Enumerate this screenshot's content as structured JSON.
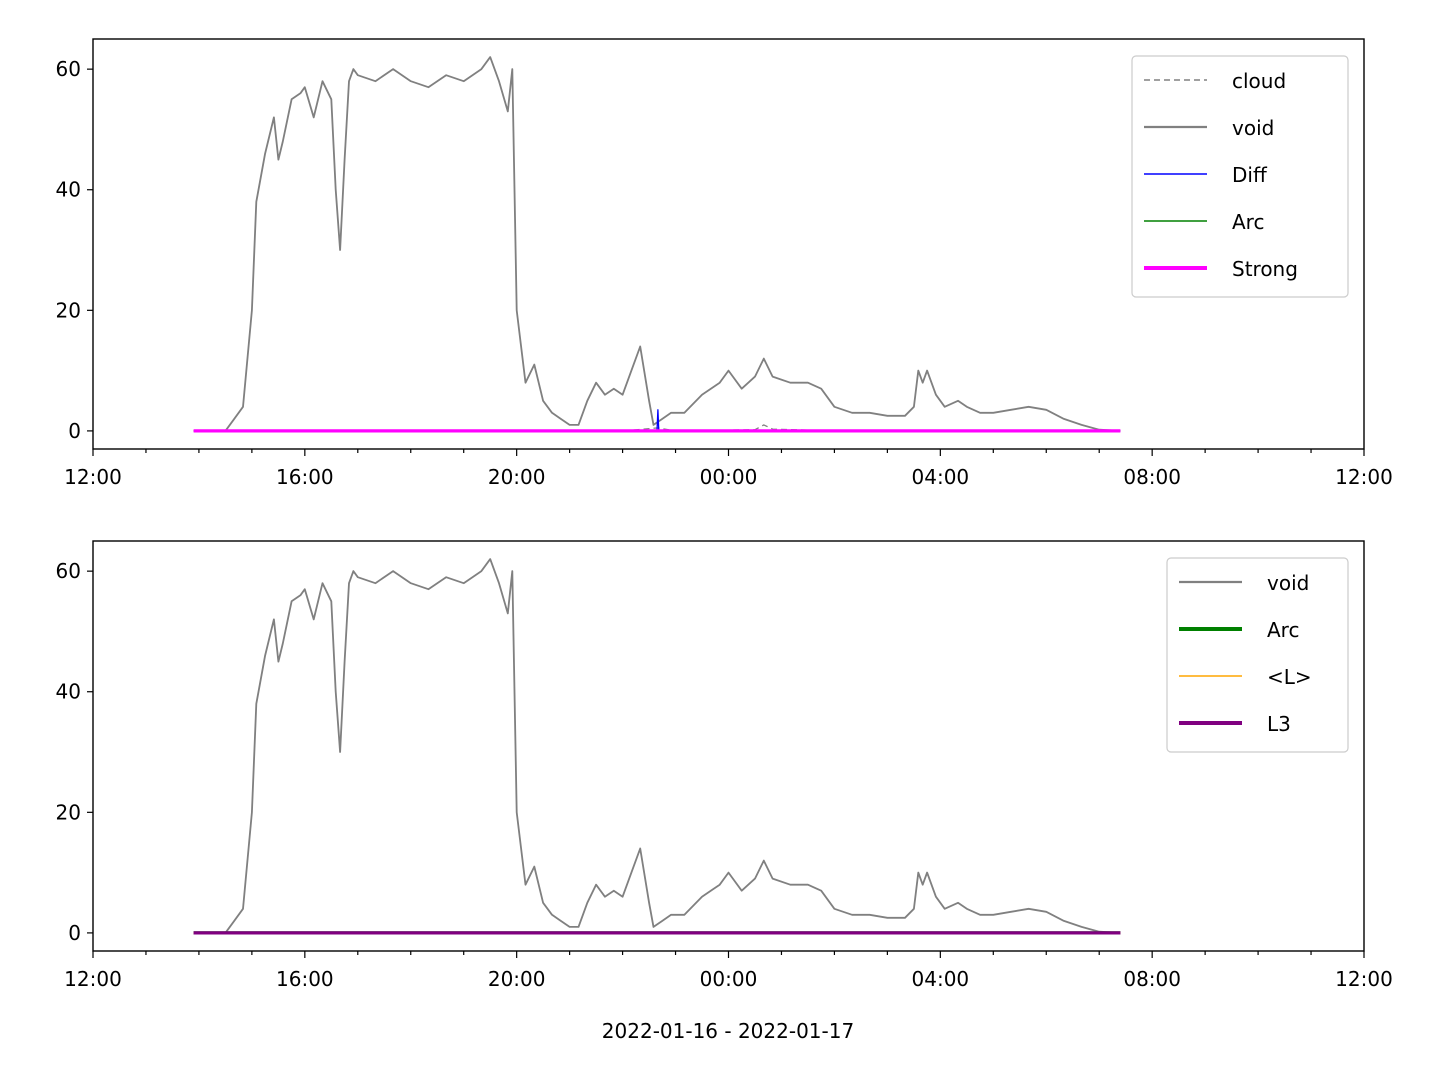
{
  "xlabel": "2022-01-16 - 2022-01-17",
  "x_ticks": [
    "12:00",
    "16:00",
    "20:00",
    "00:00",
    "04:00",
    "08:00",
    "12:00"
  ],
  "x_unit": "hours since 2022-01-16 00:00",
  "chart_data": [
    {
      "type": "line",
      "title": "",
      "xlabel": "",
      "ylabel": "",
      "xlim": [
        "2022-01-16 12:00",
        "2022-01-17 12:00"
      ],
      "ylim": [
        -3,
        65
      ],
      "yticks": [
        0,
        20,
        40,
        60
      ],
      "legend": "top-right",
      "series": [
        {
          "name": "cloud",
          "color": "#808080",
          "style": "dashed",
          "width": 1,
          "x": [
            "2022-01-16 13:54",
            "2022-01-16 22:00",
            "2022-01-16 22:40",
            "2022-01-16 23:00",
            "2022-01-17 00:30",
            "2022-01-17 00:40",
            "2022-01-17 00:50",
            "2022-01-17 02:00",
            "2022-01-17 07:24"
          ],
          "y": [
            0,
            0,
            0.5,
            0,
            0.2,
            1,
            0.3,
            0,
            0
          ]
        },
        {
          "name": "void",
          "color": "#808080",
          "style": "solid",
          "width": 1.4,
          "x": [
            "2022-01-16 13:54",
            "2022-01-16 14:30",
            "2022-01-16 14:40",
            "2022-01-16 14:50",
            "2022-01-16 15:00",
            "2022-01-16 15:05",
            "2022-01-16 15:15",
            "2022-01-16 15:25",
            "2022-01-16 15:30",
            "2022-01-16 15:35",
            "2022-01-16 15:45",
            "2022-01-16 15:55",
            "2022-01-16 16:00",
            "2022-01-16 16:10",
            "2022-01-16 16:20",
            "2022-01-16 16:30",
            "2022-01-16 16:35",
            "2022-01-16 16:40",
            "2022-01-16 16:45",
            "2022-01-16 16:50",
            "2022-01-16 16:55",
            "2022-01-16 17:00",
            "2022-01-16 17:20",
            "2022-01-16 17:40",
            "2022-01-16 18:00",
            "2022-01-16 18:20",
            "2022-01-16 18:40",
            "2022-01-16 19:00",
            "2022-01-16 19:20",
            "2022-01-16 19:30",
            "2022-01-16 19:40",
            "2022-01-16 19:50",
            "2022-01-16 19:55",
            "2022-01-16 20:00",
            "2022-01-16 20:10",
            "2022-01-16 20:20",
            "2022-01-16 20:30",
            "2022-01-16 20:40",
            "2022-01-16 20:50",
            "2022-01-16 21:00",
            "2022-01-16 21:10",
            "2022-01-16 21:20",
            "2022-01-16 21:30",
            "2022-01-16 21:40",
            "2022-01-16 21:50",
            "2022-01-16 22:00",
            "2022-01-16 22:10",
            "2022-01-16 22:20",
            "2022-01-16 22:30",
            "2022-01-16 22:35",
            "2022-01-16 22:45",
            "2022-01-16 22:55",
            "2022-01-16 23:10",
            "2022-01-16 23:30",
            "2022-01-16 23:50",
            "2022-01-17 00:00",
            "2022-01-17 00:15",
            "2022-01-17 00:30",
            "2022-01-17 00:40",
            "2022-01-17 00:50",
            "2022-01-17 01:10",
            "2022-01-17 01:30",
            "2022-01-17 01:45",
            "2022-01-17 02:00",
            "2022-01-17 02:20",
            "2022-01-17 02:40",
            "2022-01-17 03:00",
            "2022-01-17 03:20",
            "2022-01-17 03:30",
            "2022-01-17 03:35",
            "2022-01-17 03:40",
            "2022-01-17 03:45",
            "2022-01-17 03:55",
            "2022-01-17 04:05",
            "2022-01-17 04:20",
            "2022-01-17 04:30",
            "2022-01-17 04:45",
            "2022-01-17 05:00",
            "2022-01-17 05:20",
            "2022-01-17 05:40",
            "2022-01-17 06:00",
            "2022-01-17 06:20",
            "2022-01-17 06:40",
            "2022-01-17 07:00",
            "2022-01-17 07:24"
          ],
          "y": [
            0,
            0,
            2,
            4,
            20,
            38,
            46,
            52,
            45,
            48,
            55,
            56,
            57,
            52,
            58,
            55,
            40,
            30,
            45,
            58,
            60,
            59,
            58,
            60,
            58,
            57,
            59,
            58,
            60,
            62,
            58,
            53,
            60,
            20,
            8,
            11,
            5,
            3,
            2,
            1,
            1,
            5,
            8,
            6,
            7,
            6,
            10,
            14,
            5,
            1,
            2,
            3,
            3,
            6,
            8,
            10,
            7,
            9,
            12,
            9,
            8,
            8,
            7,
            4,
            3,
            3,
            2.5,
            2.5,
            4,
            10,
            8,
            10,
            6,
            4,
            5,
            4,
            3,
            3,
            3.5,
            4,
            3.5,
            2,
            1,
            0.2,
            0
          ]
        },
        {
          "name": "Diff",
          "color": "#0000ff",
          "style": "solid",
          "width": 1,
          "x": [
            "2022-01-16 13:54",
            "2022-01-16 22:39",
            "2022-01-16 22:40",
            "2022-01-16 22:41",
            "2022-01-17 07:24"
          ],
          "y": [
            0,
            0,
            3.5,
            0,
            0
          ]
        },
        {
          "name": "Arc",
          "color": "#008000",
          "style": "solid",
          "width": 1,
          "x": [
            "2022-01-16 13:54",
            "2022-01-17 07:24"
          ],
          "y": [
            0,
            0
          ]
        },
        {
          "name": "Strong",
          "color": "#ff00ff",
          "style": "solid",
          "width": 2.5,
          "x": [
            "2022-01-16 13:54",
            "2022-01-17 07:24"
          ],
          "y": [
            0,
            0
          ]
        }
      ]
    },
    {
      "type": "line",
      "title": "",
      "xlabel": "2022-01-16 - 2022-01-17",
      "ylabel": "",
      "xlim": [
        "2022-01-16 12:00",
        "2022-01-17 12:00"
      ],
      "ylim": [
        -3,
        65
      ],
      "yticks": [
        0,
        20,
        40,
        60
      ],
      "legend": "top-right",
      "series": [
        {
          "name": "void",
          "color": "#808080",
          "style": "solid",
          "width": 1.4,
          "same_as": "void"
        },
        {
          "name": "Arc",
          "color": "#008000",
          "style": "solid",
          "width": 2.5,
          "x": [
            "2022-01-16 13:54",
            "2022-01-17 07:24"
          ],
          "y": [
            0,
            0
          ]
        },
        {
          "name": "<L>",
          "color": "#ffa500",
          "style": "solid",
          "width": 1,
          "x": [
            "2022-01-16 13:54",
            "2022-01-17 07:24"
          ],
          "y": [
            0,
            0
          ]
        },
        {
          "name": "L3",
          "color": "#800080",
          "style": "solid",
          "width": 2.5,
          "x": [
            "2022-01-16 13:54",
            "2022-01-17 07:24"
          ],
          "y": [
            0,
            0
          ]
        }
      ]
    }
  ]
}
